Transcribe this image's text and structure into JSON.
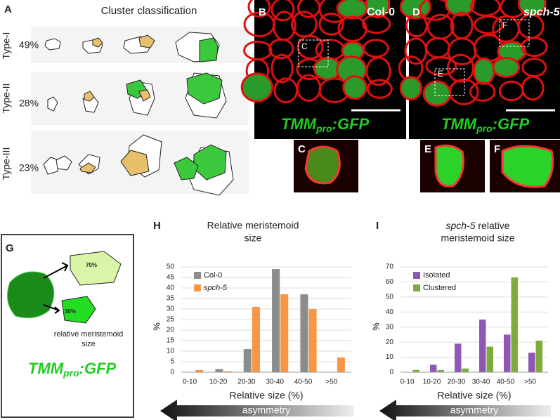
{
  "panel_a": {
    "letter": "A",
    "title": "Cluster classification",
    "rows": [
      {
        "type": "Type-I",
        "percent": "49%"
      },
      {
        "type": "Type-II",
        "percent": "28%"
      },
      {
        "type": "Type-III",
        "percent": "23%"
      }
    ]
  },
  "panel_b": {
    "letter": "B",
    "genotype": "Col-0",
    "box_label": "C",
    "marker": {
      "main": "TMM",
      "sub": "pro",
      "suffix": ":GFP"
    }
  },
  "panel_d": {
    "letter": "D",
    "genotype": "spch-5",
    "box_labels": [
      "F",
      "E"
    ],
    "marker": {
      "main": "TMM",
      "sub": "pro",
      "suffix": ":GFP"
    }
  },
  "insets": [
    "C",
    "E",
    "F"
  ],
  "panel_g": {
    "letter": "G",
    "large_label": "70%",
    "small_label": "30%",
    "caption": [
      "relative meristemoid",
      "size"
    ],
    "marker": {
      "main": "TMM",
      "sub": "pro",
      "suffix": ":GFP"
    }
  },
  "chart_data": [
    {
      "type": "bar",
      "letter": "H",
      "title": [
        "Relative meristemoid",
        "size"
      ],
      "y_label": "%",
      "x_label": "Relative size (%)",
      "arrow_label": "asymmetry",
      "categories": [
        "0-10",
        "10-20",
        "20-30",
        "30-40",
        "40-50",
        ">50"
      ],
      "series": [
        {
          "name": "Col-0",
          "color": "#8c8c8c",
          "values": [
            0,
            1.5,
            11,
            49,
            37,
            0
          ]
        },
        {
          "name": "spch-5",
          "color": "#f79646",
          "values": [
            1,
            0.5,
            31,
            37,
            30,
            7
          ]
        }
      ],
      "ylim": [
        0,
        50
      ],
      "yticks": [
        0,
        5,
        10,
        15,
        20,
        25,
        30,
        35,
        40,
        45,
        50
      ],
      "grid": true,
      "legend": "upper left"
    },
    {
      "type": "bar",
      "letter": "I",
      "title": [
        "spch-5",
        "relative",
        "meristemoid size"
      ],
      "y_label": "%",
      "x_label": "Relative size (%)",
      "arrow_label": "asymmetry",
      "categories": [
        "0-10",
        "10-20",
        "20-30",
        "30-40",
        "40-50",
        ">50"
      ],
      "series": [
        {
          "name": "Isolated",
          "color": "#8e58b4",
          "values": [
            0,
            5,
            19,
            35,
            25,
            13
          ]
        },
        {
          "name": "Clustered",
          "color": "#7fab3a",
          "values": [
            1.5,
            1.5,
            2.5,
            17,
            63,
            21
          ]
        }
      ],
      "ylim": [
        0,
        70
      ],
      "yticks": [
        0,
        10,
        20,
        30,
        40,
        50,
        60,
        70
      ],
      "grid": true,
      "legend": "upper left"
    }
  ]
}
